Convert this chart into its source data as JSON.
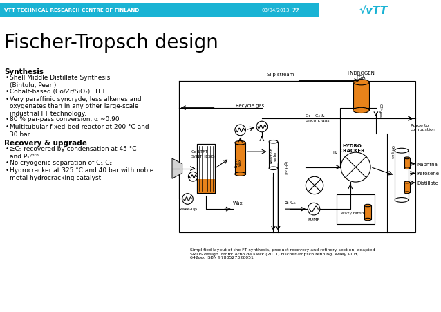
{
  "bg_color": "#ffffff",
  "header_color": "#1ab3d4",
  "header_text": "VTT TECHNICAL RESEARCH CENTRE OF FINLAND",
  "header_date": "08/04/2013",
  "header_page": "22",
  "title": "Fischer-Tropsch design",
  "synthesis_title": "Synthesis",
  "synthesis_bullets": [
    "Shell Middle Distillate Synthesis\n(Bintulu, Pearl)",
    "Cobalt-based (Co/Zr/SiO₂) LTFT",
    "Very paraffinic syncryde, less alkenes and\noxygenates than in any other large-scale\nindustrial FT technology.",
    "80 % per-pass conversion, α ~0.90",
    "Multitubular fixed-bed reactor at 200 °C and\n30 bar."
  ],
  "recovery_title": "Recovery & upgrade",
  "recovery_bullets": [
    "≥C₅ recovered by condensation at 45 °C\nand Pₛʸⁿᵗʰ",
    "No cryogenic separation of C₁-C₂",
    "Hydrocracker at 325 °C and 40 bar with noble\nmetal hydrocracking catalyst"
  ],
  "caption": "Simplified layout of the FT synthesis, product recovery and refinery section, adapted\nSMDS design. From: Arno de Klerk (2011) Fischer-Tropsch refining, Wiley VCH,\n642pp. ISBN 9783527326051",
  "orange": "#e8831a",
  "lw": 0.8
}
